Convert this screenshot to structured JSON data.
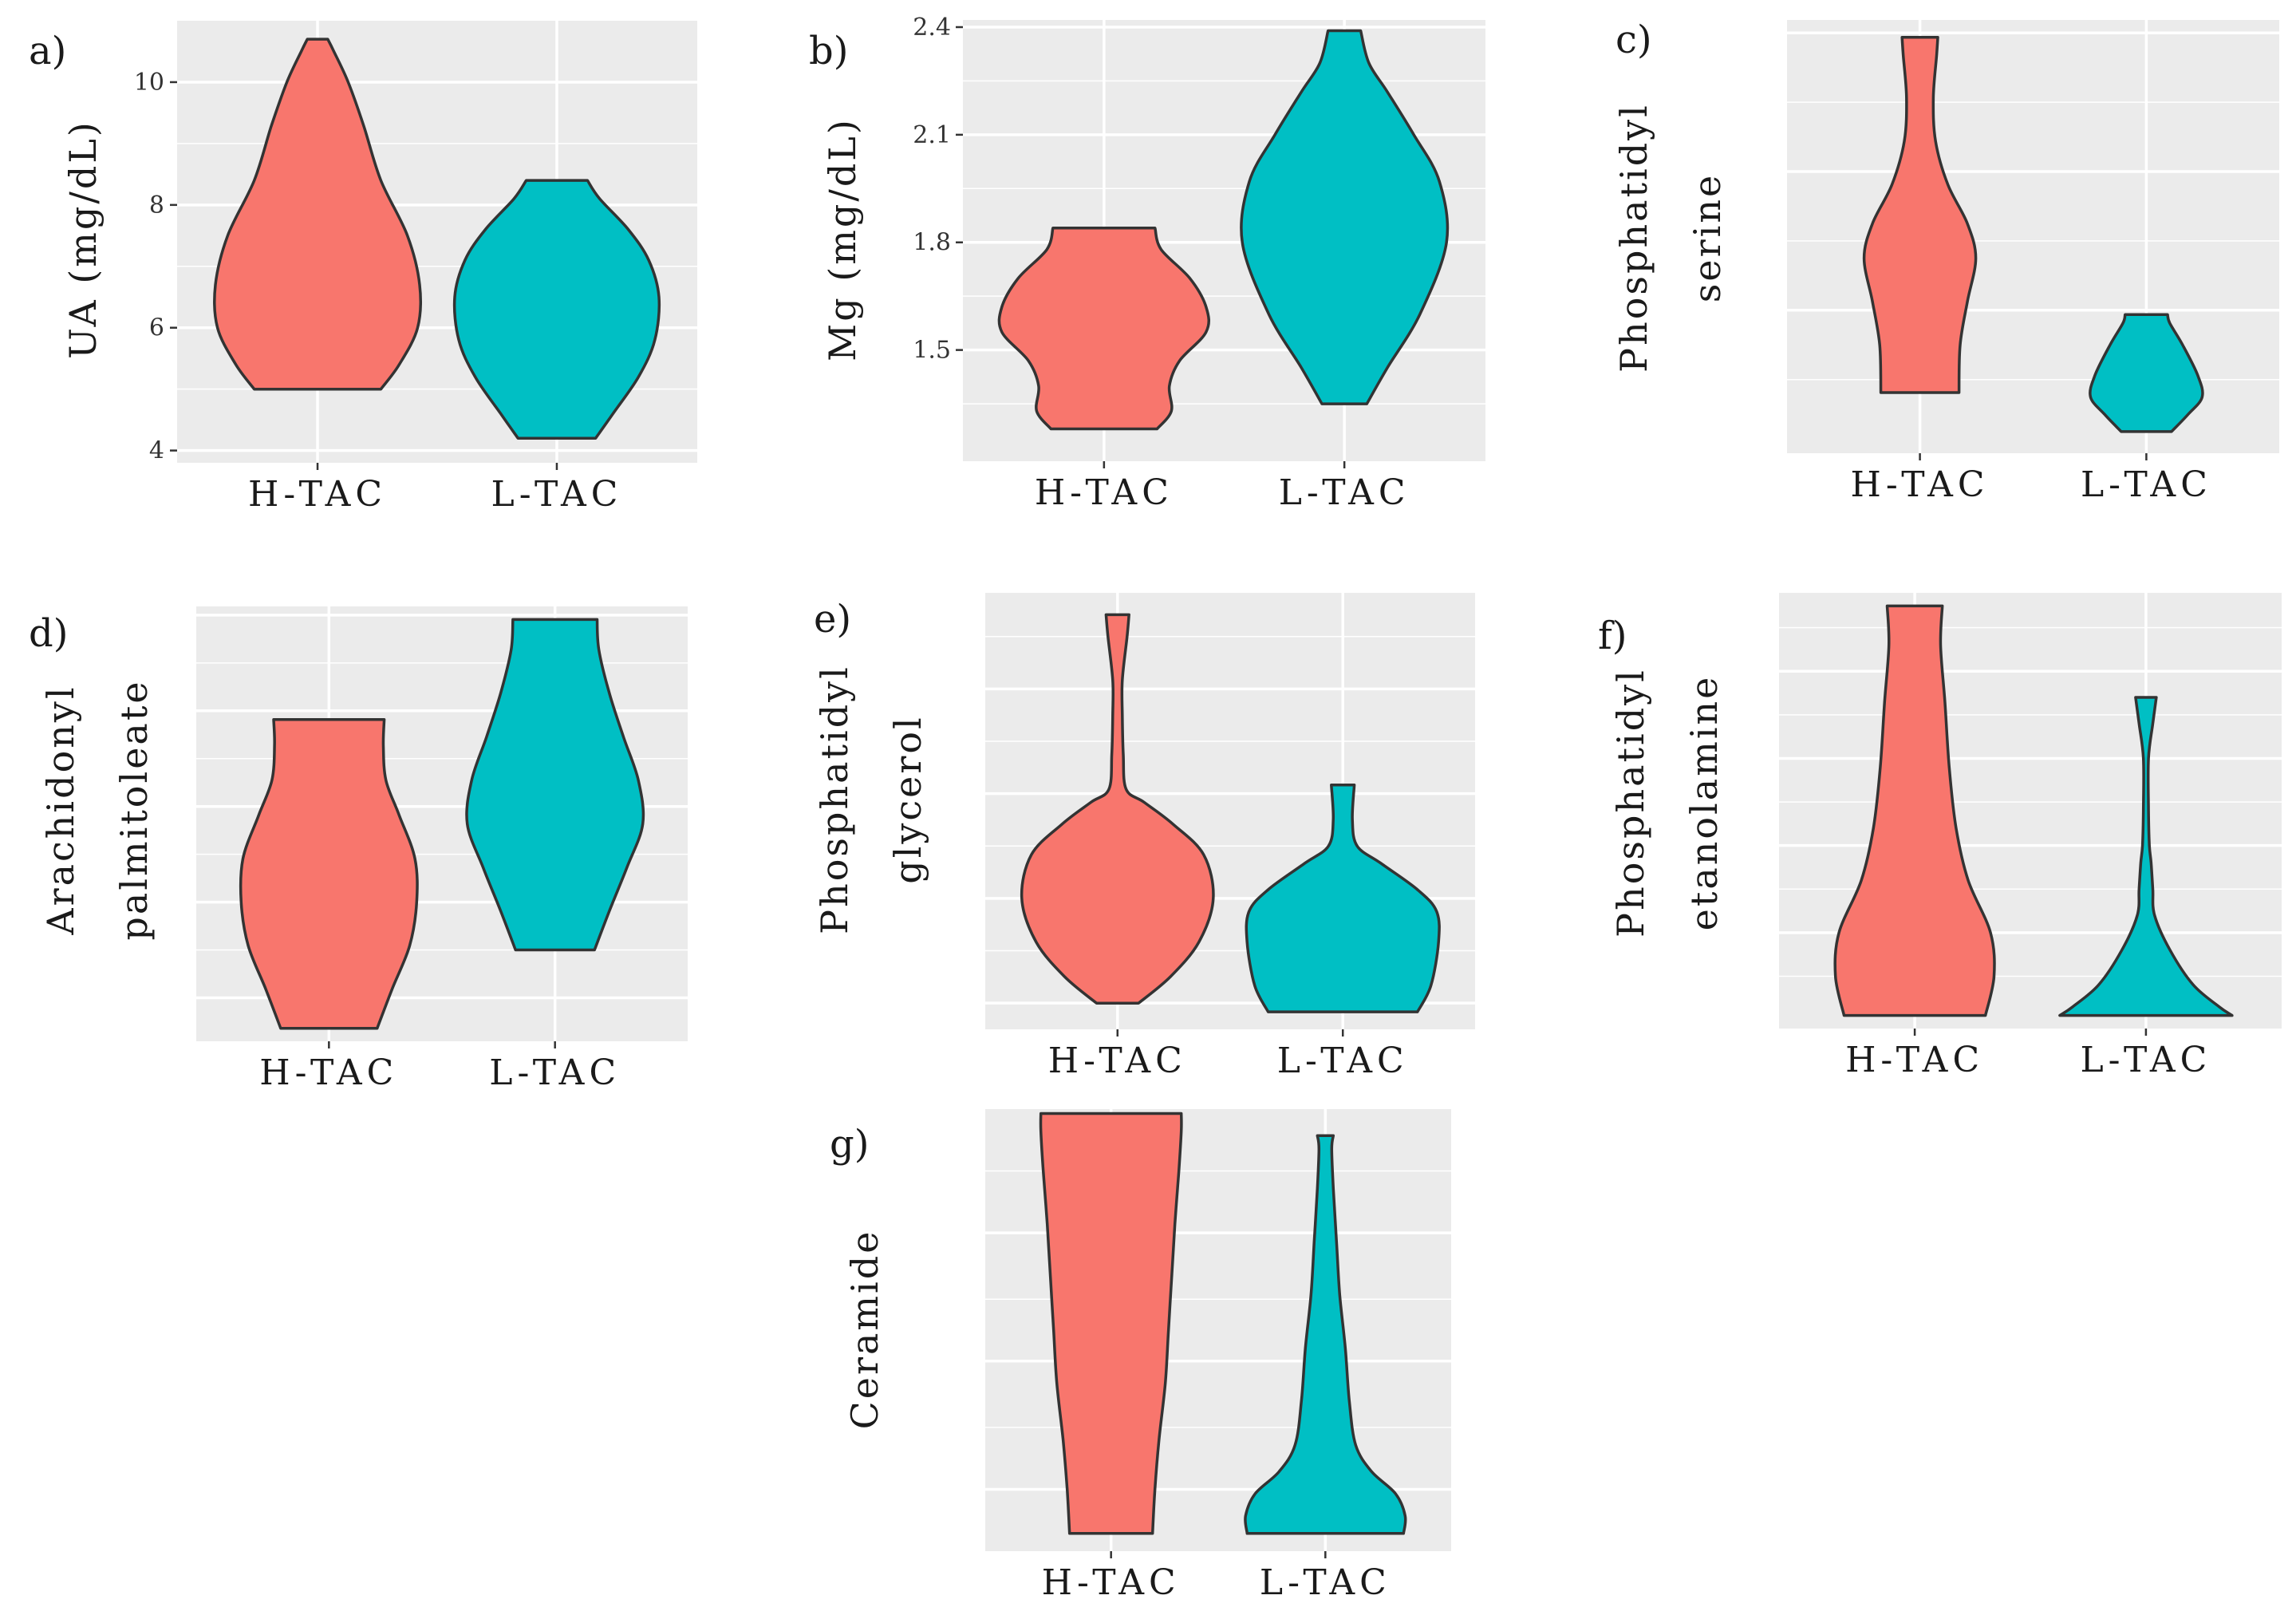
{
  "colors": {
    "h_tac": "#F8766D",
    "l_tac": "#00BFC4",
    "panel_bg": "#EBEBEB",
    "grid": "#FFFFFF",
    "outline": "#333333"
  },
  "chart_data": [
    {
      "id": "a",
      "type": "violin",
      "letter": "a)",
      "title": "",
      "xlabel": "",
      "ylabel_lines": [
        "UA (mg/dL)"
      ],
      "categories": [
        "H-TAC",
        "L-TAC"
      ],
      "ylim": [
        3.8,
        11.0
      ],
      "yticks": [
        4,
        6,
        8,
        10
      ],
      "ytick_labels": [
        "4",
        "6",
        "8",
        "10"
      ],
      "minor_grid": [
        5,
        7,
        9
      ],
      "series": [
        {
          "name": "H-TAC",
          "profile": [
            [
              5.0,
              0.62
            ],
            [
              5.4,
              0.8
            ],
            [
              6.0,
              0.98
            ],
            [
              6.7,
              1.0
            ],
            [
              7.5,
              0.88
            ],
            [
              8.4,
              0.62
            ],
            [
              9.3,
              0.45
            ],
            [
              10.0,
              0.3
            ],
            [
              10.5,
              0.16
            ],
            [
              10.7,
              0.1
            ]
          ]
        },
        {
          "name": "L-TAC",
          "profile": [
            [
              4.2,
              0.38
            ],
            [
              4.6,
              0.55
            ],
            [
              5.2,
              0.8
            ],
            [
              5.8,
              0.96
            ],
            [
              6.5,
              1.0
            ],
            [
              7.1,
              0.9
            ],
            [
              7.6,
              0.7
            ],
            [
              8.1,
              0.42
            ],
            [
              8.4,
              0.3
            ]
          ]
        }
      ]
    },
    {
      "id": "b",
      "type": "violin",
      "letter": "b)",
      "title": "",
      "xlabel": "",
      "ylabel_lines": [
        "Mg (mg/dL)"
      ],
      "categories": [
        "H-TAC",
        "L-TAC"
      ],
      "ylim": [
        1.19,
        2.42
      ],
      "yticks": [
        1.5,
        1.8,
        2.1,
        2.4
      ],
      "ytick_labels": [
        "1.5",
        "1.8",
        "2.1",
        "2.4"
      ],
      "minor_grid": [
        1.35,
        1.65,
        1.95,
        2.25
      ],
      "series": [
        {
          "name": "H-TAC",
          "profile": [
            [
              1.28,
              0.52
            ],
            [
              1.33,
              0.66
            ],
            [
              1.4,
              0.64
            ],
            [
              1.47,
              0.74
            ],
            [
              1.55,
              1.0
            ],
            [
              1.62,
              1.0
            ],
            [
              1.7,
              0.84
            ],
            [
              1.78,
              0.56
            ],
            [
              1.84,
              0.5
            ]
          ]
        },
        {
          "name": "L-TAC",
          "profile": [
            [
              1.35,
              0.22
            ],
            [
              1.45,
              0.42
            ],
            [
              1.6,
              0.74
            ],
            [
              1.8,
              1.0
            ],
            [
              1.97,
              0.93
            ],
            [
              2.1,
              0.68
            ],
            [
              2.22,
              0.42
            ],
            [
              2.3,
              0.24
            ],
            [
              2.39,
              0.16
            ]
          ]
        }
      ]
    },
    {
      "id": "c",
      "type": "violin",
      "letter": "c)",
      "title": "",
      "xlabel": "",
      "ylabel_lines": [
        "Phosphatidyl",
        "serine"
      ],
      "categories": [
        "H-TAC",
        "L-TAC"
      ],
      "ylim": [
        0.0,
        1.0
      ],
      "yticks": [],
      "ytick_labels": [],
      "major_grid": [
        0.33,
        0.65,
        0.97
      ],
      "minor_grid": [
        0.17,
        0.49,
        0.81
      ],
      "series": [
        {
          "name": "H-TAC",
          "profile": [
            [
              0.14,
              0.7
            ],
            [
              0.25,
              0.72
            ],
            [
              0.35,
              0.85
            ],
            [
              0.45,
              1.0
            ],
            [
              0.53,
              0.85
            ],
            [
              0.62,
              0.5
            ],
            [
              0.72,
              0.28
            ],
            [
              0.82,
              0.24
            ],
            [
              0.92,
              0.3
            ],
            [
              0.96,
              0.32
            ]
          ]
        },
        {
          "name": "L-TAC",
          "profile": [
            [
              0.05,
              0.45
            ],
            [
              0.09,
              0.75
            ],
            [
              0.13,
              1.0
            ],
            [
              0.18,
              0.92
            ],
            [
              0.25,
              0.65
            ],
            [
              0.3,
              0.42
            ],
            [
              0.32,
              0.38
            ]
          ]
        }
      ]
    },
    {
      "id": "d",
      "type": "violin",
      "letter": "d)",
      "title": "",
      "xlabel": "",
      "ylabel_lines": [
        "Arachidonyl",
        "palmitoleate"
      ],
      "categories": [
        "H-TAC",
        "L-TAC"
      ],
      "ylim": [
        0.0,
        1.0
      ],
      "yticks": [],
      "ytick_labels": [],
      "major_grid": [
        0.1,
        0.32,
        0.54,
        0.76,
        0.98
      ],
      "minor_grid": [
        0.21,
        0.43,
        0.65,
        0.87
      ],
      "series": [
        {
          "name": "H-TAC",
          "profile": [
            [
              0.03,
              0.55
            ],
            [
              0.12,
              0.72
            ],
            [
              0.22,
              0.92
            ],
            [
              0.32,
              1.0
            ],
            [
              0.42,
              0.98
            ],
            [
              0.52,
              0.8
            ],
            [
              0.6,
              0.65
            ],
            [
              0.68,
              0.62
            ],
            [
              0.74,
              0.63
            ]
          ]
        },
        {
          "name": "L-TAC",
          "profile": [
            [
              0.21,
              0.45
            ],
            [
              0.3,
              0.62
            ],
            [
              0.4,
              0.82
            ],
            [
              0.5,
              1.0
            ],
            [
              0.6,
              0.95
            ],
            [
              0.7,
              0.78
            ],
            [
              0.8,
              0.62
            ],
            [
              0.9,
              0.5
            ],
            [
              0.97,
              0.48
            ]
          ]
        }
      ]
    },
    {
      "id": "e",
      "type": "violin",
      "letter": "e)",
      "title": "",
      "xlabel": "",
      "ylabel_lines": [
        "Phosphatidyl",
        "glycerol"
      ],
      "categories": [
        "H-TAC",
        "L-TAC"
      ],
      "ylim": [
        0.0,
        1.0
      ],
      "yticks": [],
      "ytick_labels": [],
      "major_grid": [
        0.06,
        0.3,
        0.54,
        0.78
      ],
      "minor_grid": [
        0.18,
        0.42,
        0.66,
        0.9
      ],
      "series": [
        {
          "name": "H-TAC",
          "profile": [
            [
              0.06,
              0.22
            ],
            [
              0.12,
              0.55
            ],
            [
              0.2,
              0.85
            ],
            [
              0.3,
              1.0
            ],
            [
              0.4,
              0.9
            ],
            [
              0.47,
              0.58
            ],
            [
              0.52,
              0.28
            ],
            [
              0.55,
              0.09
            ],
            [
              0.63,
              0.06
            ],
            [
              0.72,
              0.05
            ],
            [
              0.8,
              0.05
            ],
            [
              0.9,
              0.1
            ],
            [
              0.95,
              0.12
            ]
          ]
        },
        {
          "name": "L-TAC",
          "profile": [
            [
              0.04,
              0.78
            ],
            [
              0.1,
              0.92
            ],
            [
              0.2,
              1.0
            ],
            [
              0.27,
              0.98
            ],
            [
              0.32,
              0.78
            ],
            [
              0.38,
              0.4
            ],
            [
              0.42,
              0.15
            ],
            [
              0.48,
              0.1
            ],
            [
              0.56,
              0.12
            ]
          ]
        }
      ]
    },
    {
      "id": "f",
      "type": "violin",
      "letter": "f)",
      "title": "",
      "xlabel": "",
      "ylabel_lines": [
        "Phosphatidyl",
        "etanolamine"
      ],
      "categories": [
        "H-TAC",
        "L-TAC"
      ],
      "ylim": [
        0.0,
        1.0
      ],
      "yticks": [],
      "ytick_labels": [],
      "major_grid": [
        0.22,
        0.42,
        0.62,
        0.82
      ],
      "minor_grid": [
        0.12,
        0.32,
        0.52,
        0.72,
        0.92
      ],
      "series": [
        {
          "name": "H-TAC",
          "profile": [
            [
              0.03,
              0.82
            ],
            [
              0.12,
              0.92
            ],
            [
              0.22,
              0.88
            ],
            [
              0.34,
              0.62
            ],
            [
              0.46,
              0.48
            ],
            [
              0.6,
              0.4
            ],
            [
              0.75,
              0.35
            ],
            [
              0.88,
              0.3
            ],
            [
              0.97,
              0.32
            ]
          ]
        },
        {
          "name": "L-TAC",
          "profile": [
            [
              0.03,
              1.0
            ],
            [
              0.05,
              0.85
            ],
            [
              0.1,
              0.55
            ],
            [
              0.18,
              0.28
            ],
            [
              0.26,
              0.1
            ],
            [
              0.32,
              0.08
            ],
            [
              0.38,
              0.06
            ],
            [
              0.42,
              0.04
            ],
            [
              0.5,
              0.03
            ],
            [
              0.62,
              0.03
            ],
            [
              0.7,
              0.08
            ],
            [
              0.76,
              0.12
            ]
          ]
        }
      ]
    },
    {
      "id": "g",
      "type": "violin",
      "letter": "g)",
      "title": "",
      "xlabel": "",
      "ylabel_lines": [
        "Ceramide"
      ],
      "categories": [
        "H-TAC",
        "L-TAC"
      ],
      "ylim": [
        0.0,
        1.0
      ],
      "yticks": [],
      "ytick_labels": [],
      "major_grid": [
        0.14,
        0.43,
        0.72
      ],
      "minor_grid": [
        0.28,
        0.57,
        0.86
      ],
      "series": [
        {
          "name": "H-TAC",
          "profile": [
            [
              0.04,
              0.52
            ],
            [
              0.14,
              0.55
            ],
            [
              0.25,
              0.6
            ],
            [
              0.38,
              0.68
            ],
            [
              0.5,
              0.72
            ],
            [
              0.62,
              0.76
            ],
            [
              0.74,
              0.8
            ],
            [
              0.86,
              0.85
            ],
            [
              0.95,
              0.88
            ],
            [
              0.99,
              0.88
            ]
          ]
        },
        {
          "name": "L-TAC",
          "profile": [
            [
              0.04,
              0.98
            ],
            [
              0.08,
              1.0
            ],
            [
              0.13,
              0.88
            ],
            [
              0.18,
              0.58
            ],
            [
              0.24,
              0.38
            ],
            [
              0.34,
              0.3
            ],
            [
              0.46,
              0.25
            ],
            [
              0.58,
              0.18
            ],
            [
              0.7,
              0.14
            ],
            [
              0.82,
              0.1
            ],
            [
              0.91,
              0.08
            ],
            [
              0.94,
              0.1
            ]
          ]
        }
      ]
    }
  ]
}
